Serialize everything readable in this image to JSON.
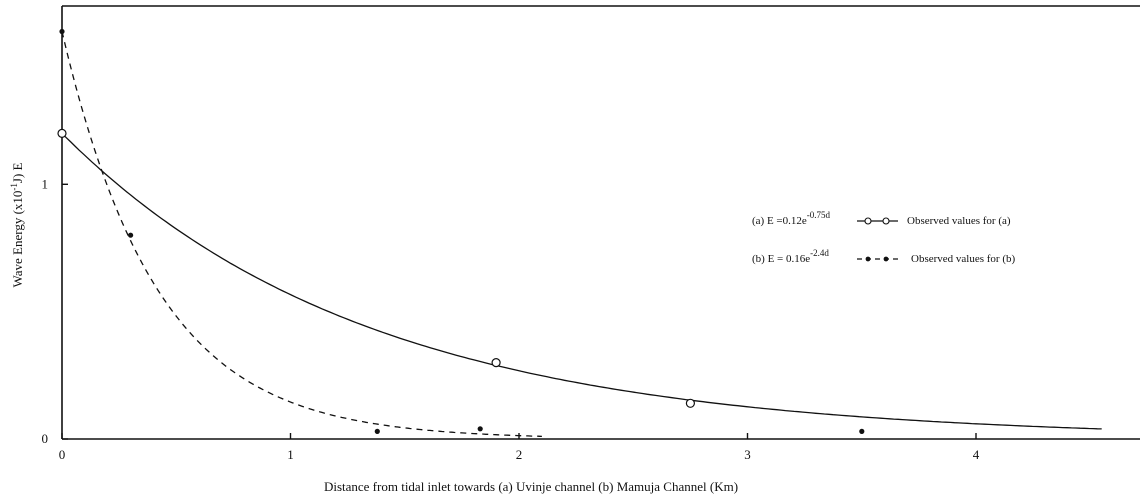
{
  "chart_data": {
    "type": "line",
    "xlabel": "Distance from tidal inlet towards (a) Uvinje channel (b) Mamuja Channel (Km)",
    "ylabel": "Wave Energy (x10",
    "ylabel_sup": "-1",
    "ylabel_tail": "J) E",
    "xlim": [
      0,
      4.6
    ],
    "ylim": [
      0,
      1.7
    ],
    "x_ticks": [
      "0",
      "1",
      "2",
      "3",
      "4"
    ],
    "y_ticks": [
      "0",
      "1"
    ],
    "grid": false,
    "legend_position": "right",
    "series": [
      {
        "key": "a",
        "equation_prefix": "(a) E =0.12e",
        "equation_exponent": "-0.75d",
        "observed_label": "Observed values for (a)",
        "line_style": "solid",
        "marker": "open-circle",
        "fit": {
          "a": 1.2,
          "k": 0.75,
          "x_max": 4.55
        },
        "observed": [
          {
            "x": 0.0,
            "y": 1.2
          },
          {
            "x": 1.9,
            "y": 0.3
          },
          {
            "x": 2.75,
            "y": 0.14
          }
        ]
      },
      {
        "key": "b",
        "equation_prefix": "(b) E = 0.16e",
        "equation_exponent": "-2.4d",
        "observed_label": "Observed values for (b)",
        "line_style": "dashed",
        "marker": "filled-dot",
        "fit": {
          "a": 1.6,
          "k": 2.4,
          "x_max": 2.1
        },
        "observed": [
          {
            "x": 0.0,
            "y": 1.6
          },
          {
            "x": 0.3,
            "y": 0.8
          },
          {
            "x": 1.38,
            "y": 0.03
          },
          {
            "x": 1.83,
            "y": 0.04
          },
          {
            "x": 3.5,
            "y": 0.03
          }
        ]
      }
    ]
  }
}
